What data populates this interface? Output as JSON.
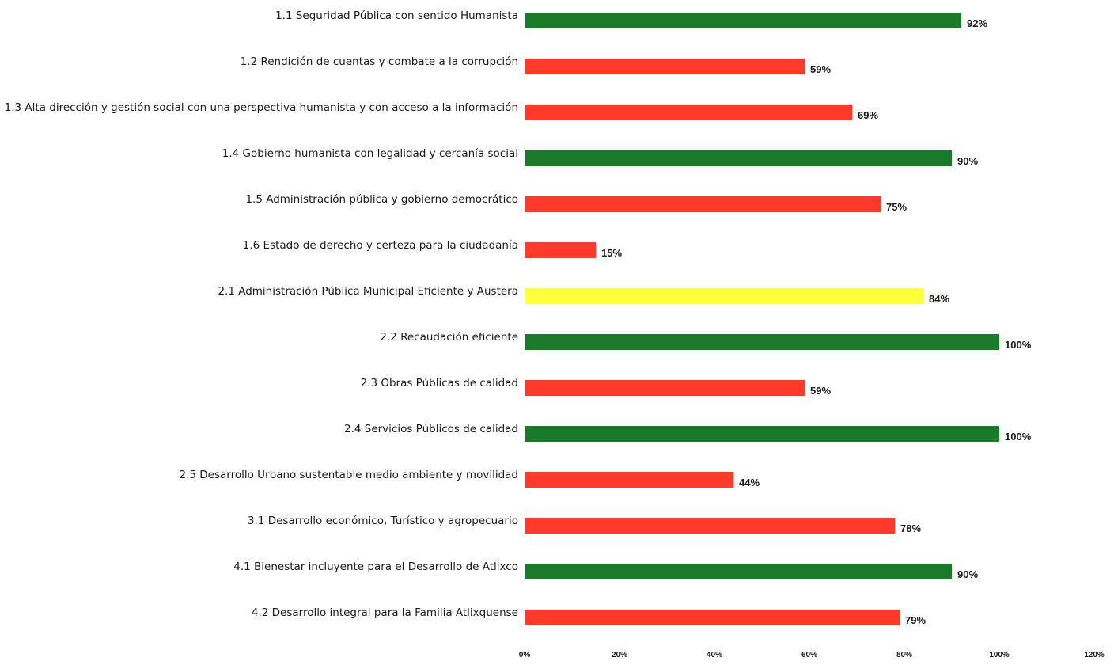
{
  "chart_data": {
    "type": "bar",
    "orientation": "horizontal",
    "title": "",
    "xlabel": "",
    "ylabel": "",
    "xlim": [
      0,
      120
    ],
    "x_ticks": [
      {
        "value": 0,
        "label": "0%"
      },
      {
        "value": 20,
        "label": "20%"
      },
      {
        "value": 40,
        "label": "40%"
      },
      {
        "value": 60,
        "label": "60%"
      },
      {
        "value": 80,
        "label": "80%"
      },
      {
        "value": 100,
        "label": "100%"
      },
      {
        "value": 120,
        "label": "120%"
      }
    ],
    "grid": false,
    "legend": "none",
    "colors": {
      "green": "#1a7a2a",
      "red": "#ff3a2a",
      "yellow": "#ffff3a"
    },
    "bars": [
      {
        "category": "1.1 Seguridad Pública con sentido Humanista",
        "value": 92,
        "value_label": "92%",
        "color": "green"
      },
      {
        "category": "1.2 Rendición de cuentas y combate a la corrupción",
        "value": 59,
        "value_label": "59%",
        "color": "red"
      },
      {
        "category": "1.3 Alta dirección y gestión social con una perspectiva humanista y con acceso a la información",
        "value": 69,
        "value_label": "69%",
        "color": "red"
      },
      {
        "category": "1.4 Gobierno humanista con legalidad y cercanía social",
        "value": 90,
        "value_label": "90%",
        "color": "green"
      },
      {
        "category": "1.5 Administración pública y gobierno democrático",
        "value": 75,
        "value_label": "75%",
        "color": "red"
      },
      {
        "category": "1.6 Estado de derecho y certeza para la ciudadanía",
        "value": 15,
        "value_label": "15%",
        "color": "red"
      },
      {
        "category": "2.1 Administración Pública Municipal Eficiente y Austera",
        "value": 84,
        "value_label": "84%",
        "color": "yellow"
      },
      {
        "category": "2.2 Recaudación eficiente",
        "value": 100,
        "value_label": "100%",
        "color": "green"
      },
      {
        "category": "2.3 Obras Públicas de calidad",
        "value": 59,
        "value_label": "59%",
        "color": "red"
      },
      {
        "category": "2.4 Servicios Públicos de calidad",
        "value": 100,
        "value_label": "100%",
        "color": "green"
      },
      {
        "category": "2.5 Desarrollo Urbano sustentable medio ambiente y movilidad",
        "value": 44,
        "value_label": "44%",
        "color": "red"
      },
      {
        "category": "3.1 Desarrollo económico, Turístico y agropecuario",
        "value": 78,
        "value_label": "78%",
        "color": "red"
      },
      {
        "category": "4.1 Bienestar incluyente para el Desarrollo de Atlixco",
        "value": 90,
        "value_label": "90%",
        "color": "green"
      },
      {
        "category": "4.2 Desarrollo integral para la Familia Atlixquense",
        "value": 79,
        "value_label": "79%",
        "color": "red"
      }
    ]
  }
}
